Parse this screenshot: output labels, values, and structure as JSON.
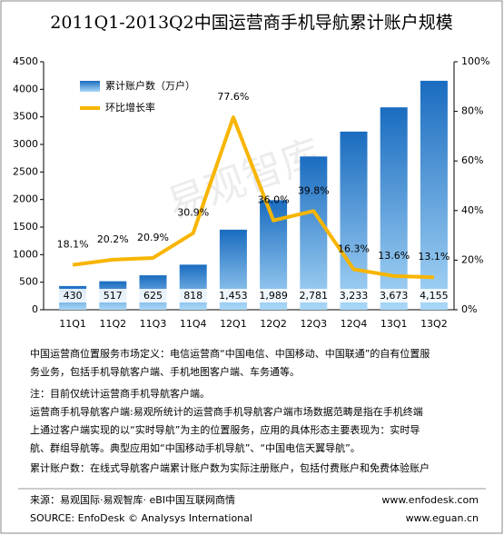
{
  "chart_data": {
    "type": "bar-line",
    "title": "2011Q1-2013Q2中国运营商手机导航累计账户规模",
    "watermark": "易观智库",
    "categories": [
      "11Q1",
      "11Q2",
      "11Q3",
      "11Q4",
      "12Q1",
      "12Q2",
      "12Q3",
      "12Q4",
      "13Q1",
      "13Q2"
    ],
    "series": [
      {
        "name": "累计账户数（万户）",
        "type": "bar",
        "color": "#1a6cc0",
        "values": [
          430,
          517,
          625,
          818,
          1453,
          1989,
          2781,
          3233,
          3673,
          4155
        ],
        "value_labels": [
          "430",
          "517",
          "625",
          "818",
          "1,453",
          "1,989",
          "2,781",
          "3,233",
          "3,673",
          "4,155"
        ]
      },
      {
        "name": "环比增长率",
        "type": "line",
        "axis": "y2",
        "color": "#f7b500",
        "values": [
          18.1,
          20.2,
          20.9,
          30.9,
          77.6,
          36.0,
          39.8,
          16.3,
          13.6,
          13.1
        ],
        "value_labels": [
          "18.1%",
          "20.2%",
          "20.9%",
          "30.9%",
          "77.6%",
          "36.0%",
          "39.8%",
          "16.3%",
          "13.6%",
          "13.1%"
        ]
      }
    ],
    "ylim": [
      0,
      4500
    ],
    "yticks": [
      0,
      500,
      1000,
      1500,
      2000,
      2500,
      3000,
      3500,
      4000,
      4500
    ],
    "y2lim": [
      0,
      100
    ],
    "y2ticks": [
      {
        "value": 0,
        "label": "0%"
      },
      {
        "value": 20,
        "label": "20%"
      },
      {
        "value": 40,
        "label": "40%"
      },
      {
        "value": 60,
        "label": "60%"
      },
      {
        "value": 80,
        "label": "80%"
      },
      {
        "value": 100,
        "label": "100%"
      }
    ],
    "legend": "upper left",
    "notes": [
      "中国运营商位置服务市场定义：电信运营商“中国电信、中国移动、中国联通”的自有位置服",
      "务业务，包括手机导航客户端、手机地图客户端、车务通等。",
      "注：目前仅统计运营商手机导航客户端。",
      "运营商手机导航客户端:易观所统计的运营商手机导航客户端市场数据范畴是指在手机终端",
      "上通过客户端实现的以“实时导航”为主的位置服务，应用的具体形态主要表现为：实时导",
      "航、群组导航等。典型应用如“中国移动手机导航”、“中国电信天翼导航”。",
      "累计账户数：在线式导航客户端累计账户数为实际注册账户，包括付费账户和免费体验账户"
    ],
    "source": [
      "来源：易观国际·易观智库· eBI中国互联网商情",
      "SOURCE: EnfoDesk © Analysys International"
    ],
    "sites": [
      "www.enfodesk.com",
      "www.eguan.cn"
    ]
  }
}
